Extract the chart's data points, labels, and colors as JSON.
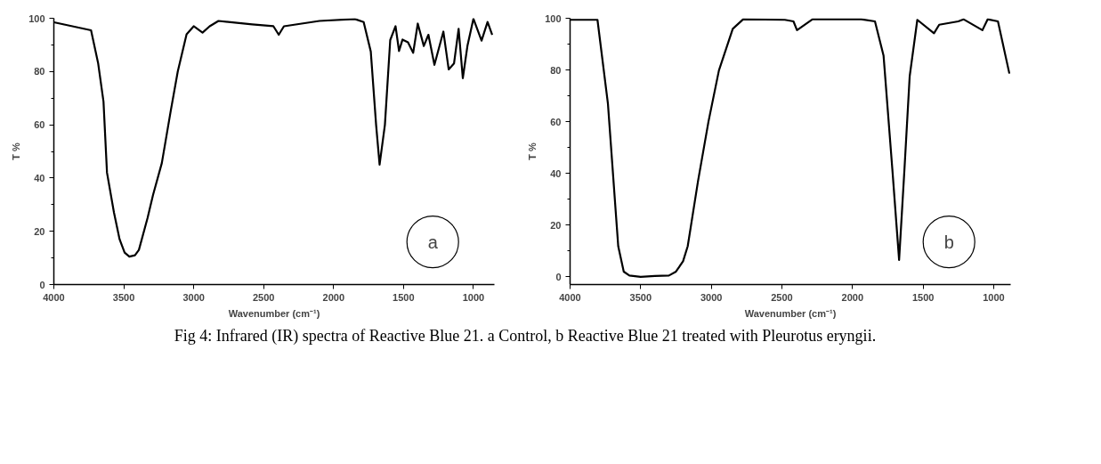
{
  "chart_data": [
    {
      "type": "line",
      "xlabel": "Wavenumber (cm⁻¹)",
      "ylabel": "T %",
      "xlim": [
        4000,
        850
      ],
      "ylim": [
        0,
        100
      ],
      "xticks": [
        4000,
        3500,
        3000,
        2500,
        2000,
        1500,
        1000
      ],
      "yticks": [
        0,
        20,
        40,
        60,
        80,
        100
      ],
      "grid": false,
      "annotations": [
        "a"
      ],
      "x": [
        4000,
        3734,
        3683,
        3645,
        3620,
        3570,
        3530,
        3494,
        3460,
        3420,
        3392,
        3330,
        3291,
        3228,
        3165,
        3114,
        3051,
        3000,
        2937,
        2886,
        2823,
        2582,
        2430,
        2392,
        2355,
        2101,
        1848,
        1785,
        1734,
        1696,
        1671,
        1633,
        1595,
        1557,
        1532,
        1507,
        1468,
        1431,
        1398,
        1355,
        1322,
        1279,
        1215,
        1177,
        1139,
        1106,
        1076,
        1043,
        1000,
        942,
        899,
        866
      ],
      "series": [
        {
          "color": "#000000",
          "values": [
            98.5,
            95.5,
            83,
            68.7,
            42,
            27,
            17,
            12,
            10.5,
            11,
            13,
            25,
            33.6,
            45.6,
            65,
            80,
            94,
            97,
            94.6,
            97,
            99,
            97.7,
            97,
            93.8,
            97,
            99,
            99.7,
            98.6,
            87.5,
            60,
            45,
            60,
            91.8,
            97,
            87.7,
            92,
            91,
            87,
            98,
            89.6,
            93.8,
            82.5,
            95,
            80.8,
            83,
            96,
            77.5,
            89.6,
            99.8,
            91.6,
            98.6,
            93.8
          ]
        }
      ]
    },
    {
      "type": "line",
      "xlabel": "Wavenumber (cm⁻¹)",
      "ylabel": "T %",
      "xlim": [
        4000,
        880
      ],
      "ylim": [
        -3,
        100
      ],
      "xticks": [
        4000,
        3500,
        3000,
        2500,
        2000,
        1500,
        1000
      ],
      "yticks": [
        0,
        20,
        40,
        60,
        80,
        100
      ],
      "grid": false,
      "annotations": [
        "b",
        "Fig 4: Infrared (IR) spectra of Reactive Blue 21. a Control, b Reactive Blue 21 treated with Pleurotus eryngii."
      ],
      "x": [
        4000,
        3806,
        3732,
        3659,
        3620,
        3580,
        3500,
        3400,
        3300,
        3250,
        3200,
        3167,
        3094,
        3020,
        2946,
        2848,
        2774,
        2479,
        2418,
        2393,
        2283,
        1939,
        1841,
        1780,
        1718,
        1670,
        1632,
        1595,
        1541,
        1423,
        1386,
        1251,
        1214,
        1080,
        1043,
        970,
        889
      ],
      "series": [
        {
          "color": "#000000",
          "values": [
            99.4,
            99.4,
            67,
            11.8,
            2,
            0.5,
            0,
            0.3,
            0.5,
            2,
            6,
            11.8,
            37,
            60,
            79.8,
            95.9,
            99.6,
            99.4,
            98.8,
            95.4,
            99.6,
            99.6,
            98.8,
            85.5,
            41.7,
            6.5,
            41.7,
            77.6,
            99.4,
            94.2,
            97.5,
            98.8,
            99.6,
            95.4,
            99.6,
            98.8,
            78.6
          ]
        }
      ]
    }
  ]
}
